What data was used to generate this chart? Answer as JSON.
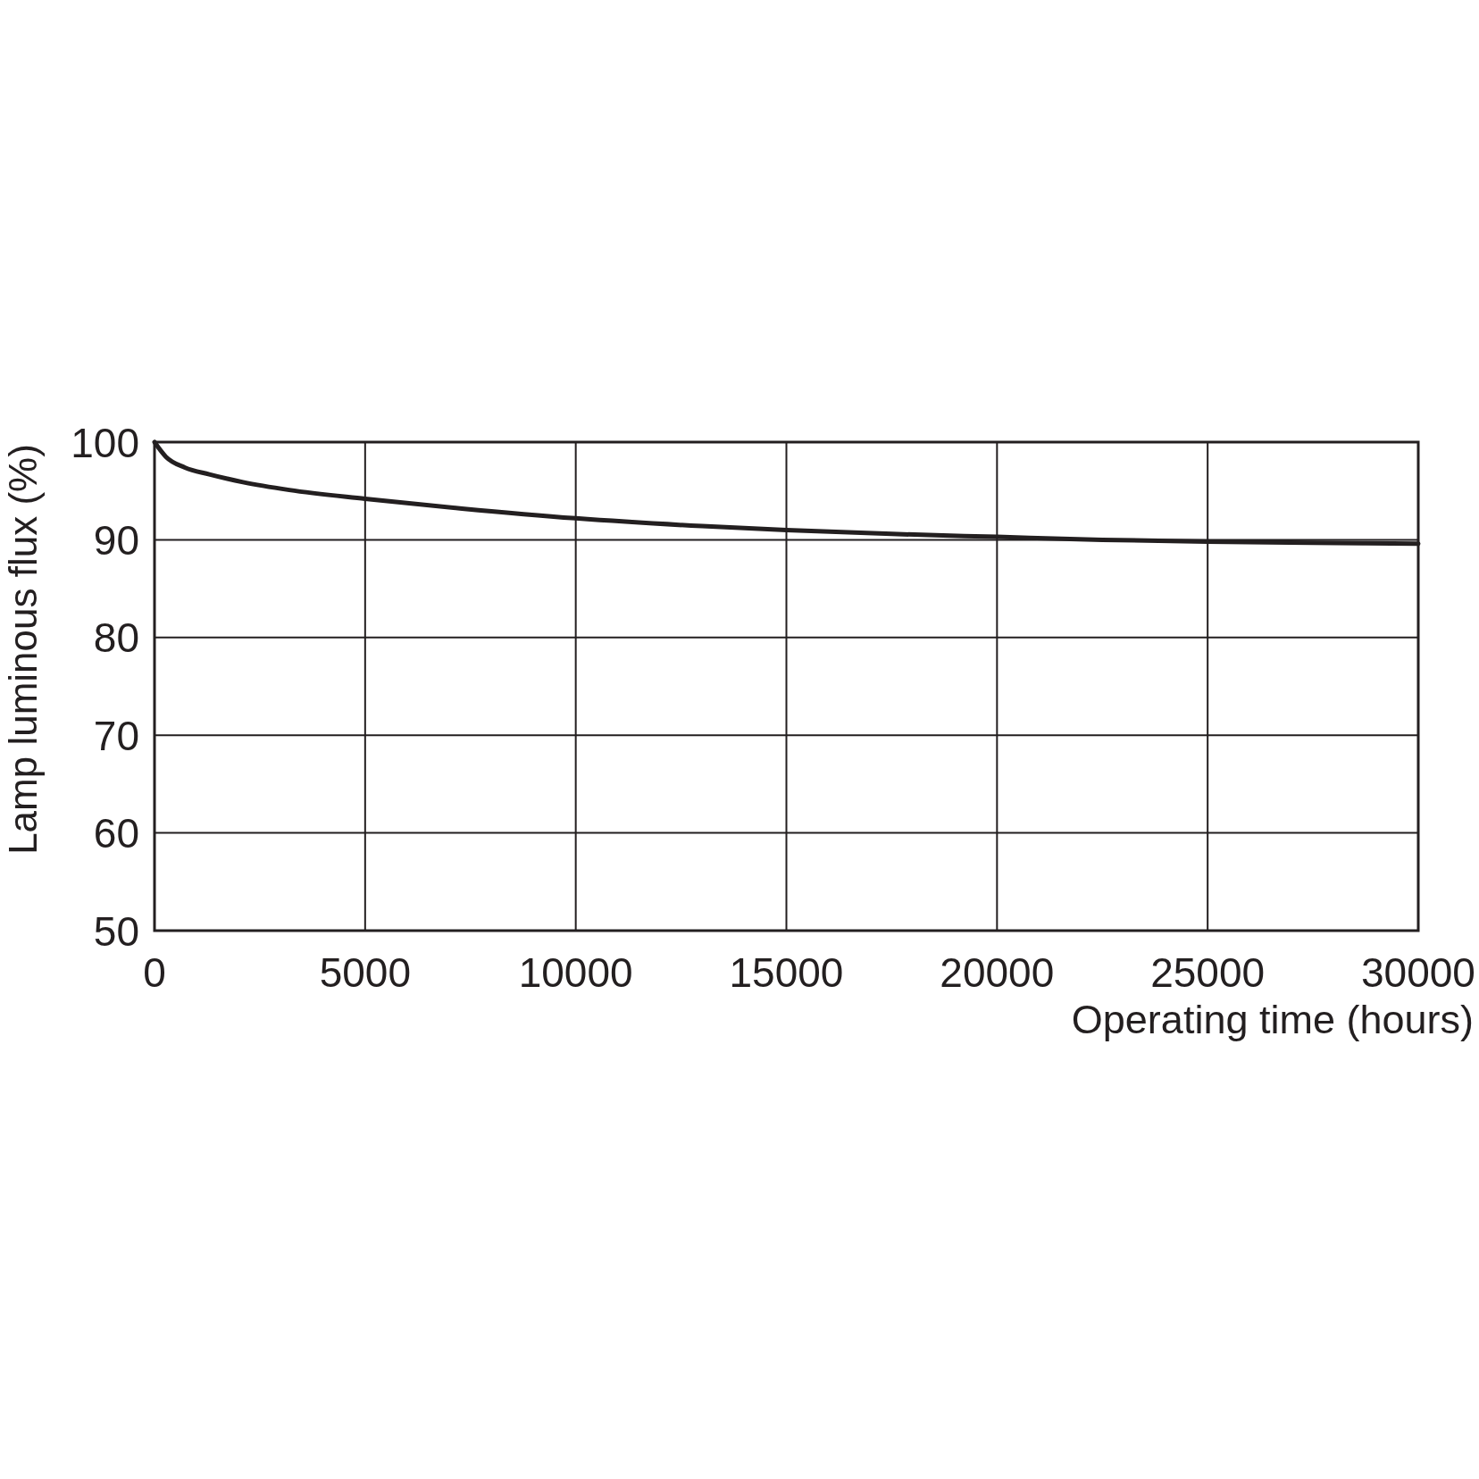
{
  "chart_data": {
    "type": "line",
    "xlabel": "Operating time (hours)",
    "ylabel": "Lamp luminous flux (%)",
    "x": [
      0,
      270,
      720,
      1300,
      2100,
      3200,
      5000,
      7300,
      10000,
      13000,
      15000,
      17500,
      20000,
      22500,
      25000,
      27500,
      30000
    ],
    "series": [
      {
        "color": "#231f20",
        "values": [
          100,
          98.5,
          97.4,
          96.7,
          95.9,
          95.1,
          94.2,
          93.2,
          92.2,
          91.4,
          91.0,
          90.6,
          90.3,
          90.0,
          89.8,
          89.7,
          89.6
        ]
      }
    ],
    "xlim": [
      0,
      30000
    ],
    "ylim": [
      50,
      100
    ],
    "xticks": [
      0,
      5000,
      10000,
      15000,
      20000,
      25000,
      30000
    ],
    "yticks": [
      50,
      60,
      70,
      80,
      90,
      100
    ],
    "grid": true
  }
}
